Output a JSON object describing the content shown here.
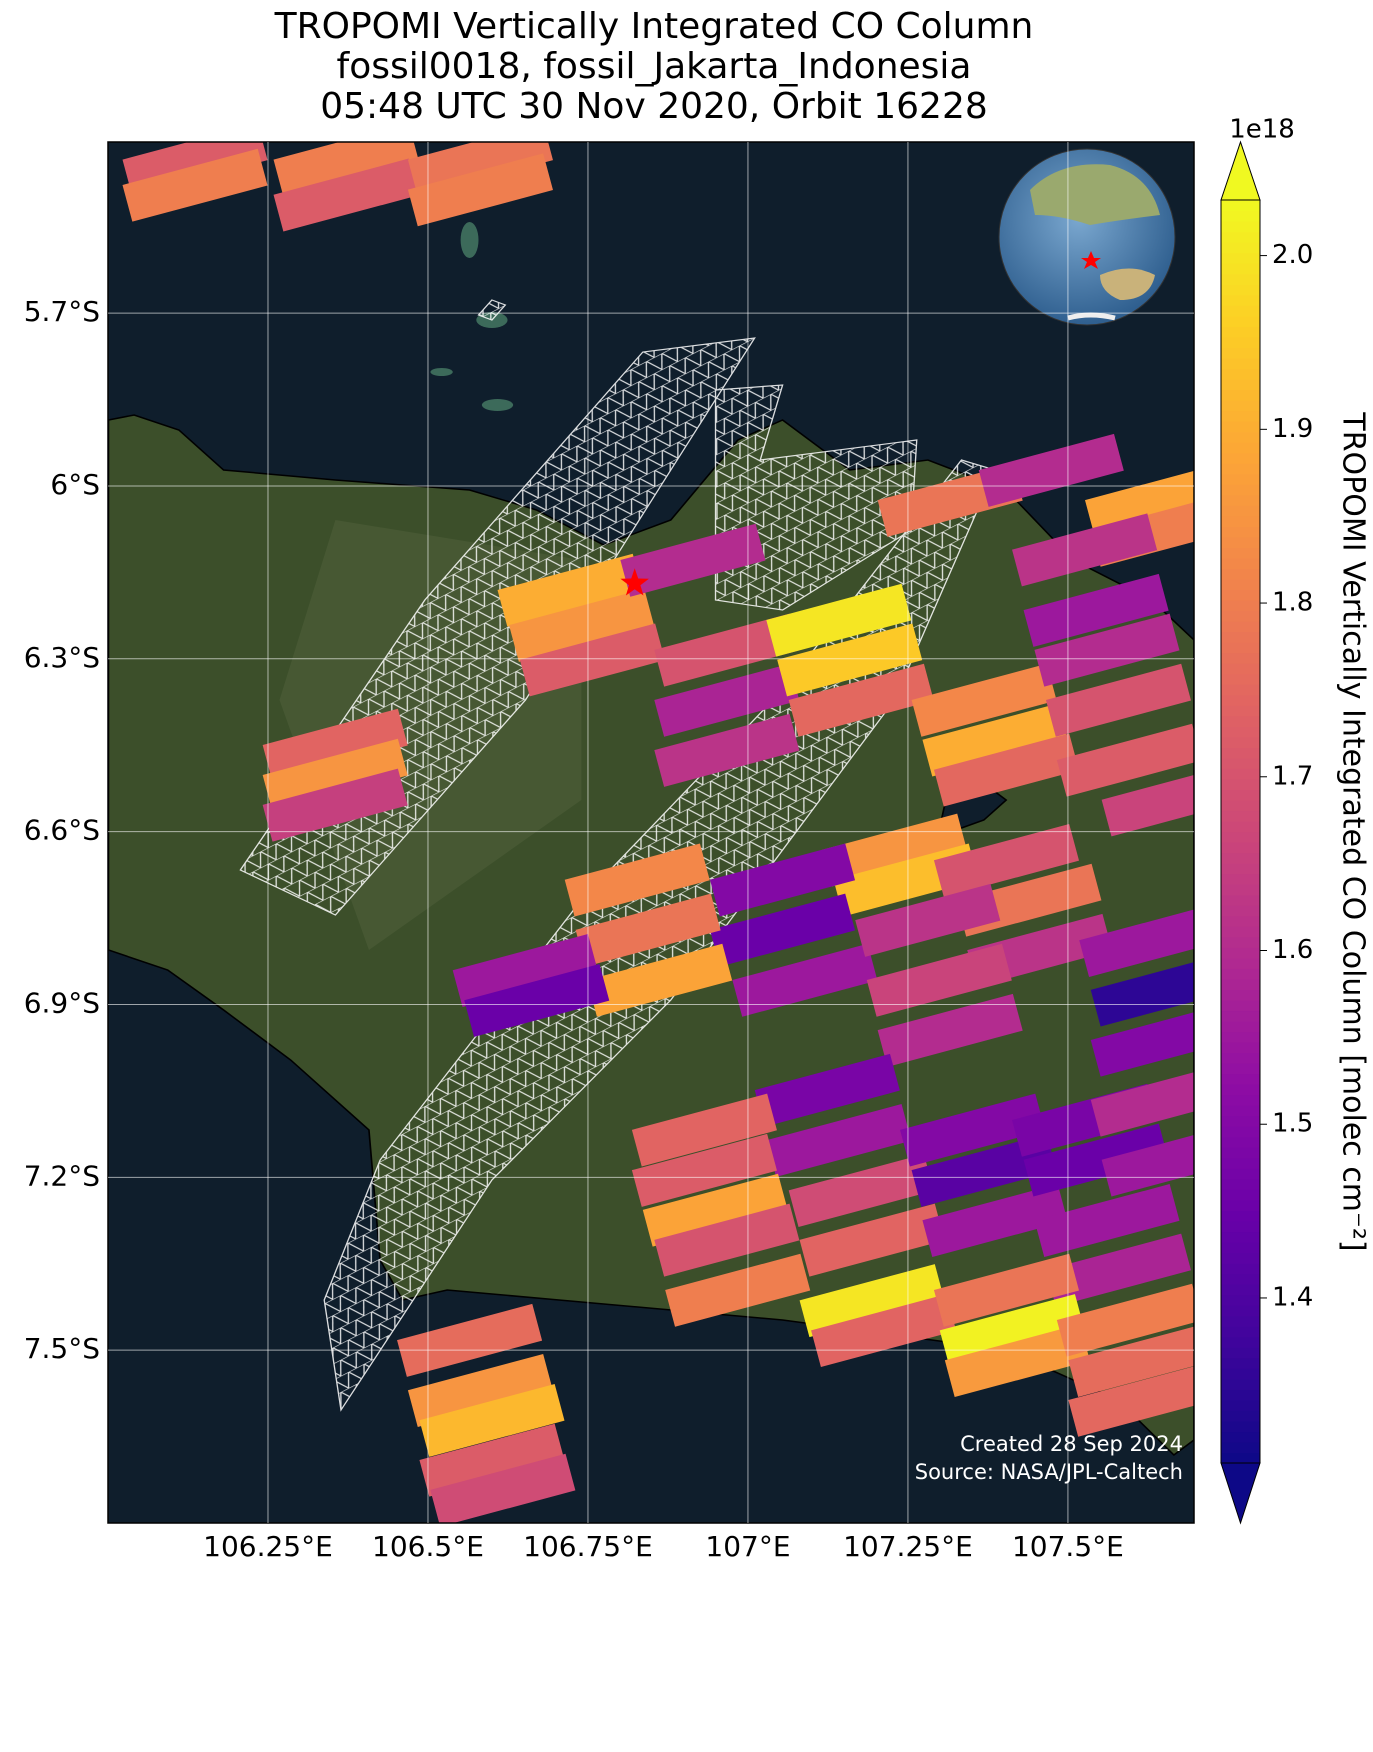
{
  "chart_data": {
    "type": "swath-map",
    "title": [
      "TROPOMI Vertically Integrated CO Column",
      "fossil0018, fossil_Jakarta_Indonesia",
      "05:48 UTC 30 Nov 2020, Orbit 16228"
    ],
    "xlim": [
      106.0,
      107.697
    ],
    "ylim": [
      -7.8,
      -5.403
    ],
    "xticks": [
      {
        "value": 106.25,
        "label": "106.25°E"
      },
      {
        "value": 106.5,
        "label": "106.5°E"
      },
      {
        "value": 106.75,
        "label": "106.75°E"
      },
      {
        "value": 107,
        "label": "107°E"
      },
      {
        "value": 107.25,
        "label": "107.25°E"
      },
      {
        "value": 107.5,
        "label": "107.5°E"
      }
    ],
    "yticks": [
      {
        "value": -5.7,
        "label": "5.7°S"
      },
      {
        "value": -6,
        "label": "6°S"
      },
      {
        "value": -6.3,
        "label": "6.3°S"
      },
      {
        "value": -6.6,
        "label": "6.6°S"
      },
      {
        "value": -6.9,
        "label": "6.9°S"
      },
      {
        "value": -7.2,
        "label": "7.2°S"
      },
      {
        "value": -7.5,
        "label": "7.5°S"
      }
    ],
    "grid": true,
    "site": {
      "lon": 106.823,
      "lat": -6.169,
      "color": "#ff0000"
    },
    "colorbar": {
      "label": "TROPOMI Vertically Integrated CO Column [molec cm⁻²]",
      "exponent": "1e18",
      "clim": [
        1.305,
        2.032
      ],
      "ticks": [
        1.4,
        1.5,
        1.6,
        1.7,
        1.8,
        1.9,
        {
          "value": 2.0,
          "label": "2.0"
        }
      ],
      "colormap": "plasma"
    },
    "cells": {
      "lon": [
        106.136,
        106.136,
        106.372,
        106.372,
        106.582,
        106.582,
        106.355,
        106.355,
        106.355,
        106.722,
        106.74,
        106.757,
        106.914,
        106.967,
        106.967,
        106.967,
        107.142,
        107.159,
        107.177,
        107.369,
        107.386,
        107.404,
        107.316,
        107.474,
        107.64,
        107.649,
        107.526,
        107.544,
        107.561,
        107.579,
        107.596,
        107.666,
        107.229,
        107.247,
        107.054,
        107.054,
        107.089,
        106.827,
        106.844,
        106.862,
        106.652,
        106.67,
        107.404,
        107.439,
        107.456,
        107.631,
        107.649,
        107.649,
        107.281,
        107.299,
        107.316,
        107.124,
        107.142,
        107.177,
        107.194,
        106.932,
        106.932,
        106.949,
        106.967,
        107.351,
        107.369,
        107.386,
        107.526,
        107.544,
        107.561,
        107.579,
        107.649,
        107.666,
        106.984,
        107.194,
        107.212,
        107.404,
        107.413,
        107.421,
        107.596,
        107.614,
        107.614,
        106.565,
        106.582,
        106.6,
        106.6,
        106.617
      ],
      "lat": [
        -5.434,
        -5.478,
        -5.434,
        -5.495,
        -5.434,
        -5.486,
        -6.45,
        -6.502,
        -6.554,
        -6.181,
        -6.242,
        -6.302,
        -6.129,
        -6.285,
        -6.372,
        -6.459,
        -6.233,
        -6.302,
        -6.372,
        -6.372,
        -6.441,
        -6.493,
        -6.025,
        -5.973,
        -6.025,
        -6.077,
        -6.111,
        -6.216,
        -6.285,
        -6.372,
        -6.476,
        -6.545,
        -6.632,
        -6.684,
        -6.684,
        -6.771,
        -6.858,
        -6.684,
        -6.771,
        -6.858,
        -6.841,
        -6.893,
        -6.65,
        -6.719,
        -6.806,
        -6.789,
        -6.875,
        -6.962,
        -6.754,
        -6.858,
        -6.945,
        -7.049,
        -7.136,
        -7.223,
        -7.309,
        -7.118,
        -7.188,
        -7.257,
        -7.309,
        -7.118,
        -7.188,
        -7.275,
        -7.101,
        -7.17,
        -7.275,
        -7.361,
        -7.066,
        -7.17,
        -7.396,
        -7.414,
        -7.466,
        -7.396,
        -7.466,
        -7.518,
        -7.448,
        -7.518,
        -7.587,
        -7.483,
        -7.57,
        -7.622,
        -7.691,
        -7.743
      ],
      "values": [
        1.72,
        1.8,
        1.8,
        1.72,
        1.78,
        1.8,
        1.74,
        1.85,
        1.65,
        1.9,
        1.85,
        1.72,
        1.6,
        1.7,
        1.58,
        1.62,
        2.0,
        1.95,
        1.75,
        1.82,
        1.9,
        1.75,
        1.78,
        1.6,
        1.88,
        1.8,
        1.62,
        1.55,
        1.6,
        1.7,
        1.72,
        1.66,
        1.85,
        1.93,
        1.5,
        1.45,
        1.55,
        1.82,
        1.78,
        1.88,
        1.55,
        1.45,
        1.7,
        1.78,
        1.62,
        1.55,
        1.35,
        1.5,
        1.62,
        1.66,
        1.6,
        1.48,
        1.55,
        1.68,
        1.74,
        1.74,
        1.72,
        1.88,
        1.7,
        1.5,
        1.42,
        1.55,
        1.48,
        1.45,
        1.55,
        1.58,
        1.6,
        1.55,
        1.8,
        2.0,
        1.74,
        1.78,
        2.02,
        1.86,
        1.8,
        1.76,
        1.75,
        1.76,
        1.85,
        1.92,
        1.72,
        1.68
      ]
    },
    "footnotes": [
      "Created 28 Sep 2024",
      "Source: NASA/JPL-Caltech"
    ]
  }
}
